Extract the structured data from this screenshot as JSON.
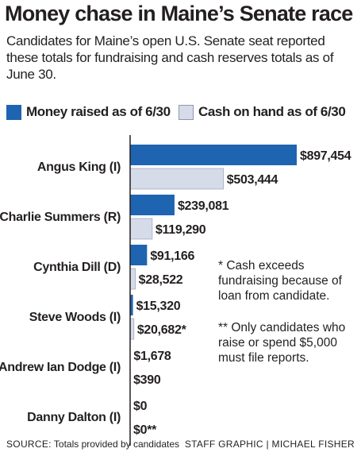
{
  "title": "Money chase in Maine’s Senate race",
  "subtitle": "Candidates for Maine’s open U.S. Senate seat reported these totals for fundraising and cash reserves totals as of June 30.",
  "legend": {
    "raised": "Money raised as of 6/30",
    "cash": "Cash on hand as of 6/30"
  },
  "colors": {
    "raised": "#1f64b0",
    "cash": "#d6dbe9",
    "cash_border": "#8f97b0",
    "axis": "#231f20"
  },
  "notes": {
    "cash_note": "* Cash exceeds fundraising because of loan from candidate.",
    "report_note": "** Only candidates who raise or spend $5,000 must file reports."
  },
  "footer": {
    "source_label": "SOURCE:",
    "source_text": "Totals provided by candidates",
    "credit": "STAFF GRAPHIC | MICHAEL FISHER"
  },
  "chart_data": {
    "type": "bar",
    "orientation": "horizontal",
    "categories": [
      "Angus King (I)",
      "Charlie Summers (R)",
      "Cynthia Dill (D)",
      "Steve Woods (I)",
      "Andrew Ian Dodge (I)",
      "Danny Dalton (I)"
    ],
    "series": [
      {
        "name": "Money raised as of 6/30",
        "values": [
          897454,
          239081,
          91166,
          15320,
          1678,
          0
        ],
        "labels": [
          "$897,454",
          "$239,081",
          "$91,166",
          "$15,320",
          "$1,678",
          "$0"
        ]
      },
      {
        "name": "Cash on hand as of 6/30",
        "values": [
          503444,
          119290,
          28522,
          20682,
          390,
          0
        ],
        "labels": [
          "$503,444",
          "$119,290",
          "$28,522",
          "$20,682*",
          "$390",
          "$0**"
        ]
      }
    ],
    "xlim": [
      0,
      897454
    ],
    "grid": false,
    "legend_position": "top"
  }
}
